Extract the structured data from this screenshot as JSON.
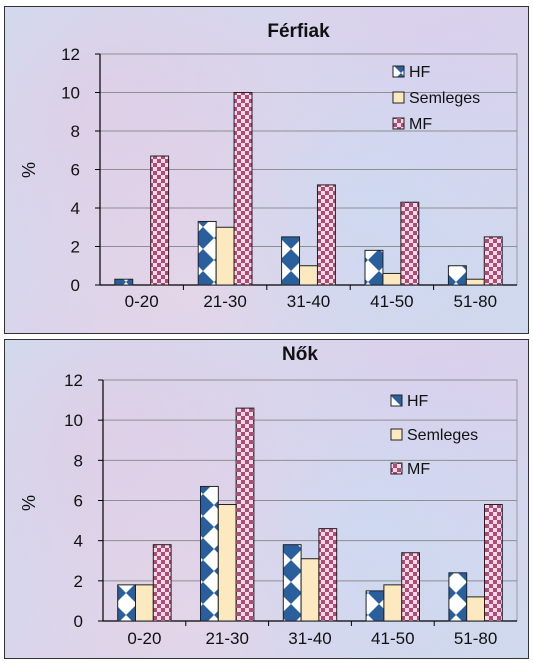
{
  "chart_data": [
    {
      "type": "bar",
      "title": "Férfiak",
      "ylabel": "%",
      "categories": [
        "0-20",
        "21-30",
        "31-40",
        "41-50",
        "51-80"
      ],
      "ylim": [
        0,
        12
      ],
      "yticks": [
        0,
        2,
        4,
        6,
        8,
        10,
        12
      ],
      "legend_position": "top-right",
      "series": [
        {
          "name": "HF",
          "values": [
            0.3,
            3.3,
            2.5,
            1.8,
            1.0
          ],
          "color": "#2a5f9e",
          "pattern": "diamond"
        },
        {
          "name": "Semleges",
          "values": [
            0,
            3.0,
            1.0,
            0.6,
            0.3
          ],
          "color": "#fde9c0",
          "pattern": "solid"
        },
        {
          "name": "MF",
          "values": [
            6.7,
            10.0,
            5.2,
            4.3,
            2.5
          ],
          "color": "#b04a78",
          "pattern": "check"
        }
      ]
    },
    {
      "type": "bar",
      "title": "Nők",
      "ylabel": "%",
      "categories": [
        "0-20",
        "21-30",
        "31-40",
        "41-50",
        "51-80"
      ],
      "ylim": [
        0,
        12
      ],
      "yticks": [
        0,
        2,
        4,
        6,
        8,
        10,
        12
      ],
      "legend_position": "top-right",
      "series": [
        {
          "name": "HF",
          "values": [
            1.8,
            6.7,
            3.8,
            1.5,
            2.4
          ],
          "color": "#2a5f9e",
          "pattern": "diamond"
        },
        {
          "name": "Semleges",
          "values": [
            1.8,
            5.8,
            3.1,
            1.8,
            1.2
          ],
          "color": "#fde9c0",
          "pattern": "solid"
        },
        {
          "name": "MF",
          "values": [
            3.8,
            10.6,
            4.6,
            3.4,
            5.8
          ],
          "color": "#b04a78",
          "pattern": "check"
        }
      ]
    }
  ]
}
